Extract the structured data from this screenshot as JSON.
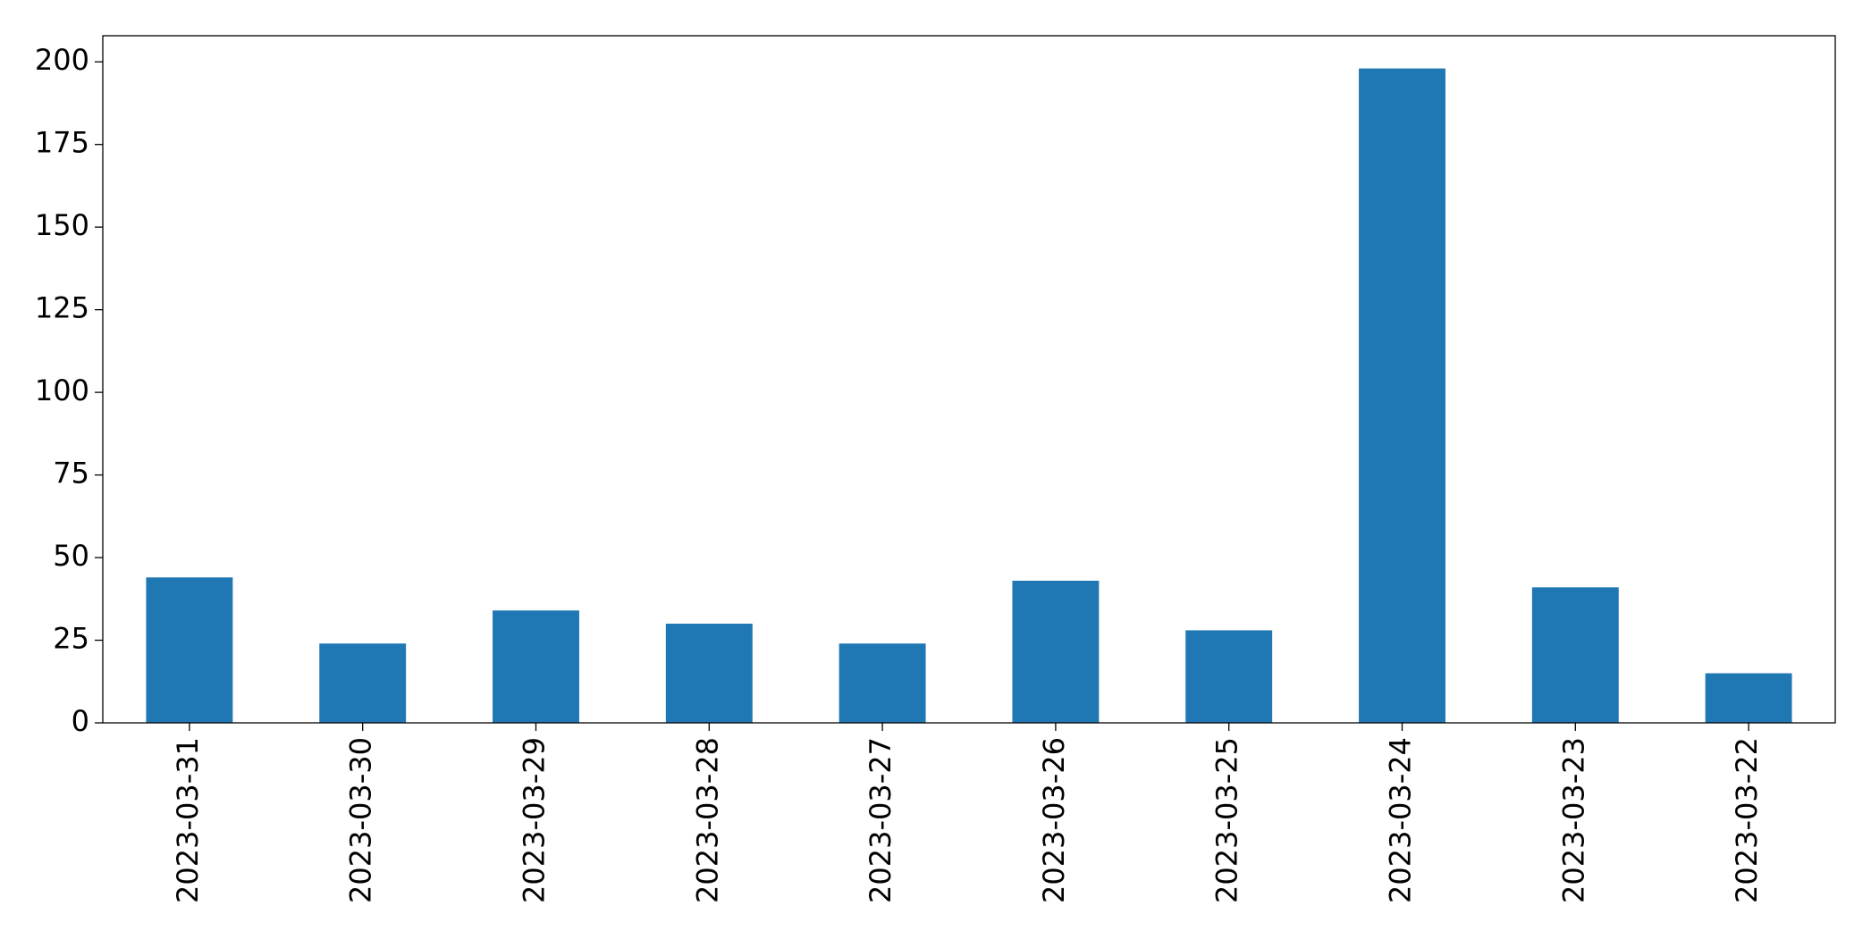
{
  "chart_data": {
    "type": "bar",
    "categories": [
      "2023-03-31",
      "2023-03-30",
      "2023-03-29",
      "2023-03-28",
      "2023-03-27",
      "2023-03-26",
      "2023-03-25",
      "2023-03-24",
      "2023-03-23",
      "2023-03-22"
    ],
    "values": [
      44,
      24,
      34,
      30,
      24,
      43,
      28,
      198,
      41,
      15
    ],
    "color": "#1f77b4",
    "ylim": [
      0,
      207.9
    ],
    "yticks": [
      0,
      25,
      50,
      75,
      100,
      125,
      150,
      175,
      200
    ],
    "grid": false
  }
}
